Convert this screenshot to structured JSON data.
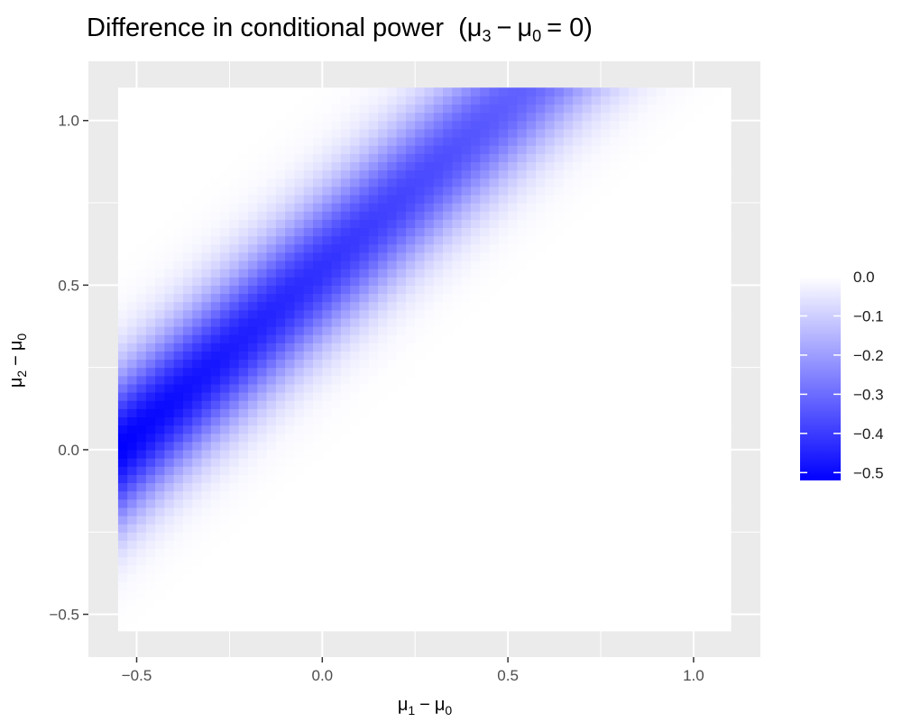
{
  "chart_data": {
    "type": "heatmap",
    "title": "Difference in conditional power",
    "title_math": {
      "mu_a": "μ",
      "sub_a": "3",
      "minus": "−",
      "mu_b": "μ",
      "sub_b": "0",
      "eq": "= 0"
    },
    "xlabel": {
      "mu_a": "μ",
      "sub_a": "1",
      "minus": "−",
      "mu_b": "μ",
      "sub_b": "0"
    },
    "ylabel": {
      "mu_a": "μ",
      "sub_a": "2",
      "minus": "−",
      "mu_b": "μ",
      "sub_b": "0"
    },
    "xlim": [
      -0.55,
      1.1
    ],
    "ylim": [
      -0.55,
      1.1
    ],
    "panel_range": [
      -0.63,
      1.18
    ],
    "x_ticks": [
      -0.5,
      0.0,
      0.5,
      1.0
    ],
    "x_tick_labels": [
      "−0.5",
      "0.0",
      "0.5",
      "1.0"
    ],
    "y_ticks": [
      -0.5,
      0.0,
      0.5,
      1.0
    ],
    "y_tick_labels": [
      "−0.5",
      "0.0",
      "0.5",
      "1.0"
    ],
    "x_minor": [
      -0.25,
      0.25,
      0.75
    ],
    "y_minor": [
      -0.25,
      0.25,
      0.75
    ],
    "fill_model": {
      "description_free": true,
      "peak_value": -0.52,
      "ridge_offset": 0.55,
      "ridge_spread": 0.16,
      "saturation_x": -0.55,
      "saturation_y": 1.1
    },
    "legend": {
      "position": "right",
      "range": [
        -0.52,
        0.0
      ],
      "ticks": [
        0.0,
        -0.1,
        -0.2,
        -0.3,
        -0.4,
        -0.5
      ],
      "tick_labels": [
        "0.0",
        "−0.1",
        "−0.2",
        "−0.3",
        "−0.4",
        "−0.5"
      ],
      "low_color": "#0000ff",
      "high_color": "#ffffff"
    },
    "grid": true,
    "panel_background": "#ebebeb",
    "grid_color": "#ffffff"
  }
}
